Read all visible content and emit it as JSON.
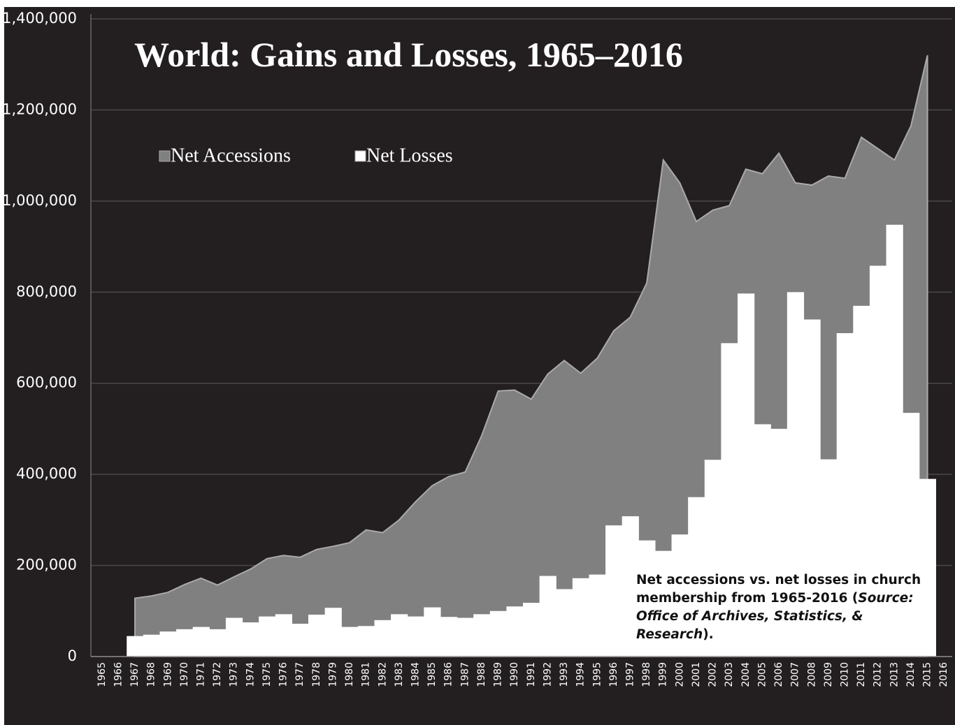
{
  "chart_data": {
    "type": "area-step",
    "title": "World: Gains and Losses, 1965–2016",
    "categories": [
      "1965",
      "1966",
      "1967",
      "1968",
      "1969",
      "1970",
      "1971",
      "1972",
      "1973",
      "1974",
      "1975",
      "1976",
      "1977",
      "1978",
      "1979",
      "1980",
      "1981",
      "1982",
      "1983",
      "1984",
      "1985",
      "1986",
      "1987",
      "1988",
      "1989",
      "1990",
      "1991",
      "1992",
      "1993",
      "1994",
      "1995",
      "1996",
      "1997",
      "1998",
      "1999",
      "2000",
      "2001",
      "2002",
      "2003",
      "2004",
      "2005",
      "2006",
      "2007",
      "2008",
      "2009",
      "2010",
      "2011",
      "2012",
      "2013",
      "2014",
      "2015",
      "2016"
    ],
    "series": [
      {
        "name": "Net Accessions",
        "color": "#808080",
        "values": [
          null,
          null,
          128000,
          133000,
          141000,
          158000,
          172000,
          157000,
          175000,
          192000,
          215000,
          222000,
          218000,
          235000,
          242000,
          250000,
          278000,
          272000,
          300000,
          340000,
          375000,
          395000,
          405000,
          485000,
          583000,
          585000,
          565000,
          620000,
          650000,
          622000,
          655000,
          715000,
          745000,
          820000,
          1090000,
          1040000,
          955000,
          980000,
          990000,
          1070000,
          1060000,
          1105000,
          1040000,
          1035000,
          1055000,
          1050000,
          1140000,
          1115000,
          1090000,
          1165000,
          1320000,
          null
        ]
      },
      {
        "name": "Net Losses",
        "color": "#ffffff",
        "values": [
          null,
          null,
          45000,
          48000,
          55000,
          60000,
          65000,
          60000,
          85000,
          75000,
          88000,
          93000,
          72000,
          92000,
          107000,
          65000,
          67000,
          80000,
          93000,
          88000,
          108000,
          87000,
          85000,
          93000,
          100000,
          110000,
          118000,
          177000,
          148000,
          172000,
          180000,
          288000,
          308000,
          255000,
          232000,
          268000,
          350000,
          432000,
          688000,
          797000,
          510000,
          500000,
          800000,
          740000,
          433000,
          710000,
          770000,
          858000,
          948000,
          535000,
          390000,
          null
        ]
      }
    ],
    "ylim": [
      0,
      1400000
    ],
    "yticks": [
      0,
      {
        "value": 200000,
        "label": "200,000"
      },
      {
        "value": 400000,
        "label": "400,000"
      },
      {
        "value": 600000,
        "label": "600,000"
      },
      {
        "value": 800000,
        "label": "800,000"
      },
      {
        "value": 1000000,
        "label": "1,000,000"
      },
      {
        "value": 1200000,
        "label": "1,200,000"
      },
      {
        "value": 1400000,
        "label": "1,400,000"
      }
    ],
    "grid": true,
    "annotation": {
      "text": "Net accessions vs. net losses in church membership from 1965-2016 (",
      "source": "Source: Office of Archives, Statistics, & Research",
      "end": ")."
    }
  }
}
